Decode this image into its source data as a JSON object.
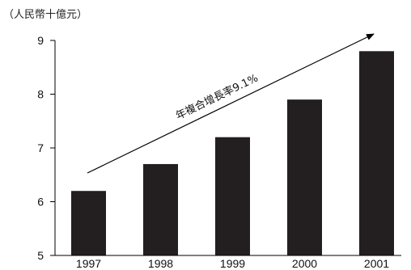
{
  "chart_data": {
    "type": "bar",
    "unit_label": "（人民幣十億元）",
    "categories": [
      "1997",
      "1998",
      "1999",
      "2000",
      "2001"
    ],
    "values": [
      6.2,
      6.7,
      7.2,
      7.9,
      8.8
    ],
    "ylim": [
      5,
      9
    ],
    "yticks": [
      "5",
      "6",
      "7",
      "8",
      "9"
    ],
    "annotation": "年複合增長率9.1%",
    "colors": {
      "bar": "#231f20",
      "axis": "#000000"
    }
  }
}
